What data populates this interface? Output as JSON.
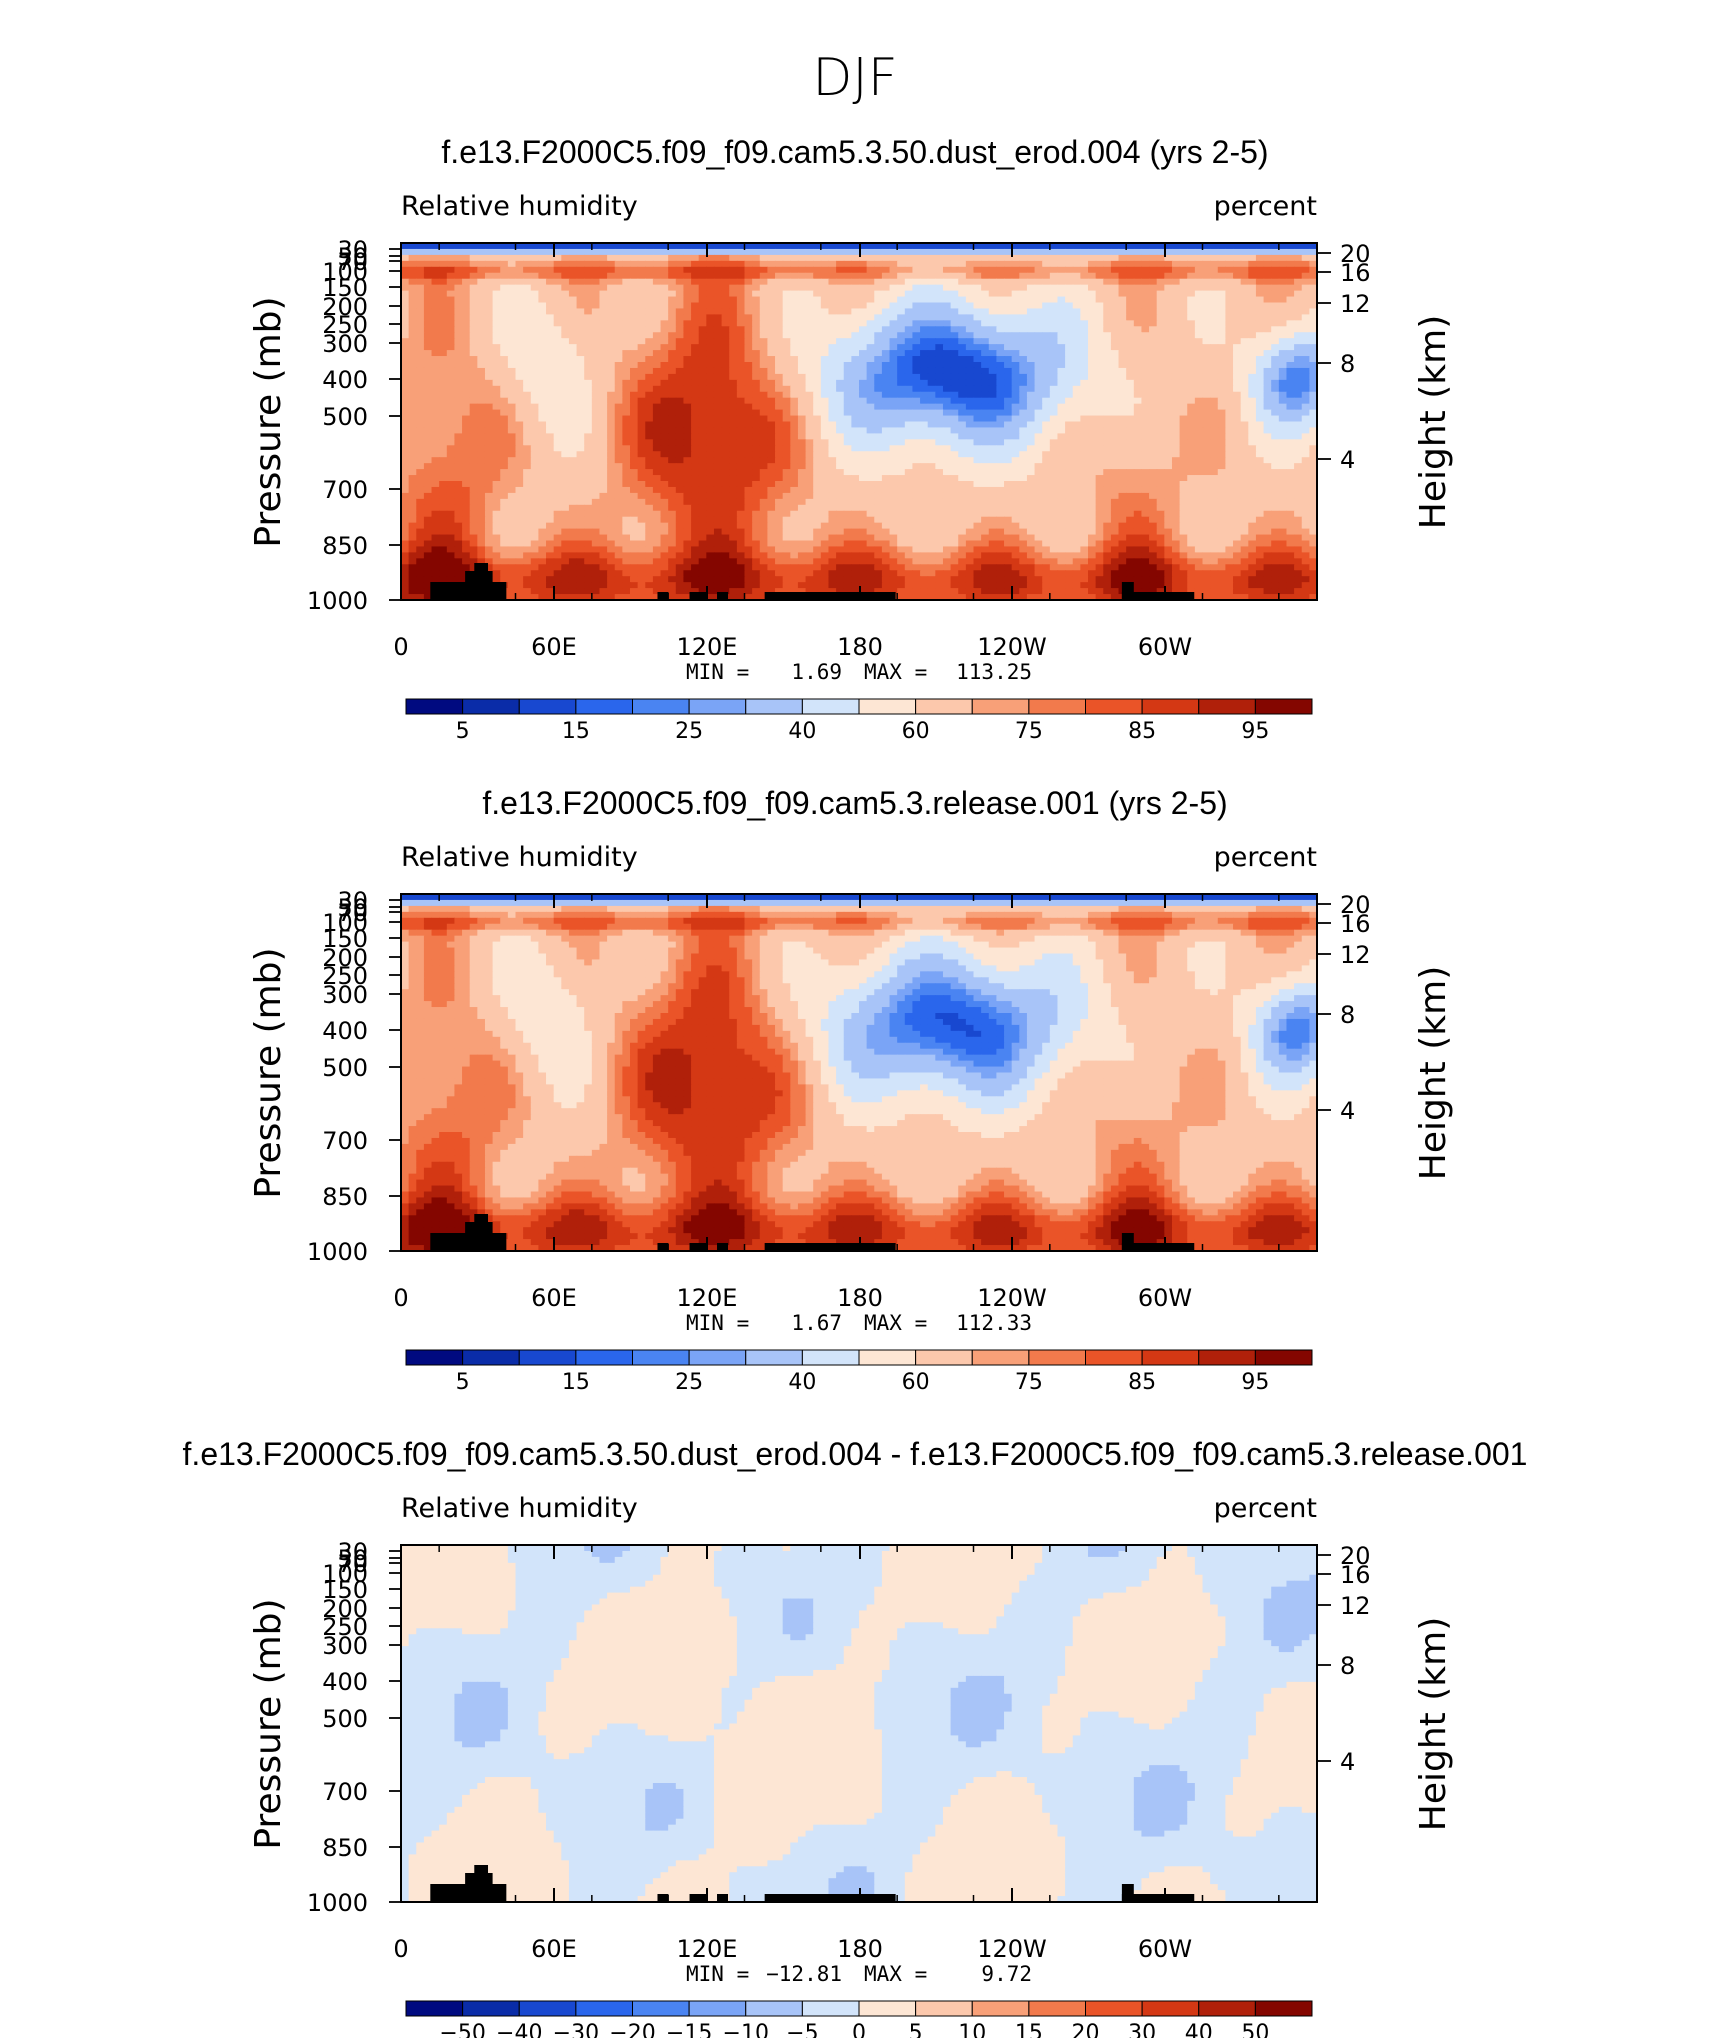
{
  "figure": {
    "title": "DJF"
  },
  "chart_data": [
    {
      "type": "heatmap",
      "title": "f.e13.F2000C5.f09_f09.cam5.3.50.dust_erod.004 (yrs 2-5)",
      "left_label": "Relative humidity",
      "right_label": "percent",
      "ylabel": "Pressure (mb)",
      "ylabel_right": "Height (km)",
      "x_ticks": [
        "0",
        "60E",
        "120E",
        "180",
        "120W",
        "60W"
      ],
      "y_ticks": [
        "30",
        "50",
        "70",
        "100",
        "150",
        "200",
        "250",
        "300",
        "400",
        "500",
        "700",
        "850",
        "1000"
      ],
      "y_ticks_right": [
        "20",
        "16",
        "12",
        "8",
        "4"
      ],
      "stats": {
        "min_label": "MIN =",
        "min": "1.69",
        "max_label": "MAX =",
        "max": "113.25"
      },
      "colorbar_labels": [
        "5",
        "15",
        "25",
        "40",
        "60",
        "75",
        "85",
        "95"
      ],
      "field": "mean"
    },
    {
      "type": "heatmap",
      "title": "f.e13.F2000C5.f09_f09.cam5.3.release.001 (yrs 2-5)",
      "left_label": "Relative humidity",
      "right_label": "percent",
      "ylabel": "Pressure (mb)",
      "ylabel_right": "Height (km)",
      "x_ticks": [
        "0",
        "60E",
        "120E",
        "180",
        "120W",
        "60W"
      ],
      "y_ticks": [
        "30",
        "50",
        "70",
        "100",
        "150",
        "200",
        "250",
        "300",
        "400",
        "500",
        "700",
        "850",
        "1000"
      ],
      "y_ticks_right": [
        "20",
        "16",
        "12",
        "8",
        "4"
      ],
      "stats": {
        "min_label": "MIN =",
        "min": "1.67",
        "max_label": "MAX =",
        "max": "112.33"
      },
      "colorbar_labels": [
        "5",
        "15",
        "25",
        "40",
        "60",
        "75",
        "85",
        "95"
      ],
      "field": "mean"
    },
    {
      "type": "heatmap",
      "title": "f.e13.F2000C5.f09_f09.cam5.3.50.dust_erod.004 - f.e13.F2000C5.f09_f09.cam5.3.release.001",
      "left_label": "Relative humidity",
      "right_label": "percent",
      "ylabel": "Pressure (mb)",
      "ylabel_right": "Height (km)",
      "x_ticks": [
        "0",
        "60E",
        "120E",
        "180",
        "120W",
        "60W"
      ],
      "y_ticks": [
        "30",
        "50",
        "70",
        "100",
        "150",
        "200",
        "250",
        "300",
        "400",
        "500",
        "700",
        "850",
        "1000"
      ],
      "y_ticks_right": [
        "20",
        "16",
        "12",
        "8",
        "4"
      ],
      "stats": {
        "min_label": "MIN =",
        "min": "−12.81",
        "max_label": "MAX =",
        "max": "9.72"
      },
      "colorbar_labels": [
        "−50",
        "−40",
        "−30",
        "−20",
        "−15",
        "−10",
        "−5",
        "0",
        "5",
        "10",
        "15",
        "20",
        "30",
        "40",
        "50"
      ],
      "field": "diff"
    }
  ],
  "colors": {
    "scale": [
      "#000a80",
      "#0a2ca8",
      "#1848d0",
      "#2a66ec",
      "#4a84f2",
      "#7aa4f6",
      "#a8c4f8",
      "#d2e4fa",
      "#fde6d4",
      "#fcc8ac",
      "#f8a078",
      "#f27a4c",
      "#ea5428",
      "#d43814",
      "#b0200a",
      "#840600"
    ]
  }
}
